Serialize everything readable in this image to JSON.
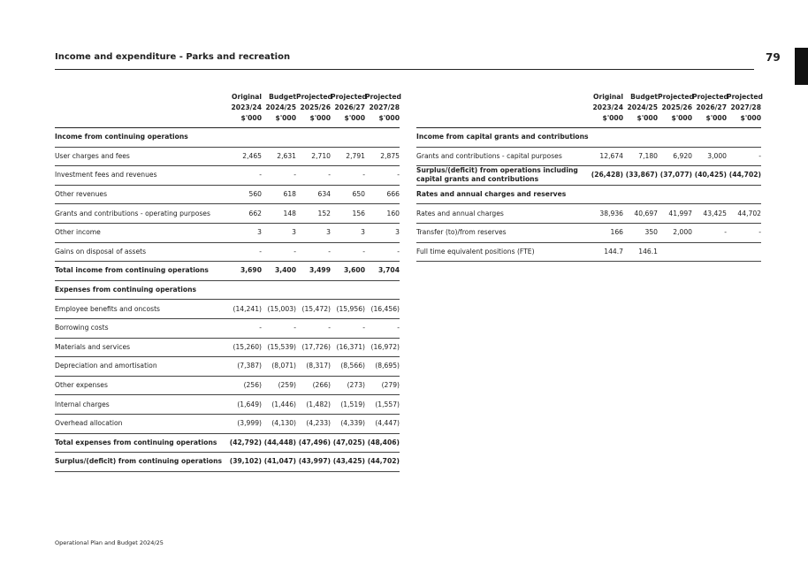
{
  "header": {
    "title": "Income and expenditure - Parks and recreation",
    "page_number": "79"
  },
  "left_table": {
    "columns": [
      [
        "Original",
        "2023/24",
        "$'000"
      ],
      [
        "Budget",
        "2024/25",
        "$'000"
      ],
      [
        "Projected",
        "2025/26",
        "$'000"
      ],
      [
        "Projected",
        "2026/27",
        "$'000"
      ],
      [
        "Projected",
        "2027/28",
        "$'000"
      ]
    ],
    "rows": [
      {
        "cells": [
          "Income from continuing operations"
        ],
        "bold": true
      },
      {
        "cells": [
          "User charges and fees",
          "2,465",
          "2,631",
          "2,710",
          "2,791",
          "2,875"
        ]
      },
      {
        "cells": [
          "Investment fees and revenues",
          "-",
          "-",
          "-",
          "-",
          "-"
        ]
      },
      {
        "cells": [
          "Other revenues",
          "560",
          "618",
          "634",
          "650",
          "666"
        ]
      },
      {
        "cells": [
          "Grants and contributions - operating purposes",
          "662",
          "148",
          "152",
          "156",
          "160"
        ]
      },
      {
        "cells": [
          "Other income",
          "3",
          "3",
          "3",
          "3",
          "3"
        ]
      },
      {
        "cells": [
          "Gains on disposal of assets",
          "-",
          "-",
          "-",
          "-",
          "-"
        ]
      },
      {
        "cells": [
          "Total income from continuing operations",
          "3,690",
          "3,400",
          "3,499",
          "3,600",
          "3,704"
        ],
        "bold": true
      },
      {
        "cells": [
          "Expenses from continuing operations"
        ],
        "bold": true
      },
      {
        "cells": [
          "Employee benefits and oncosts",
          "(14,241)",
          "(15,003)",
          "(15,472)",
          "(15,956)",
          "(16,456)"
        ]
      },
      {
        "cells": [
          "Borrowing costs",
          "-",
          "-",
          "-",
          "-",
          "-"
        ]
      },
      {
        "cells": [
          "Materials and services",
          "(15,260)",
          "(15,539)",
          "(17,726)",
          "(16,371)",
          "(16,972)"
        ]
      },
      {
        "cells": [
          "Depreciation and amortisation",
          "(7,387)",
          "(8,071)",
          "(8,317)",
          "(8,566)",
          "(8,695)"
        ]
      },
      {
        "cells": [
          "Other expenses",
          "(256)",
          "(259)",
          "(266)",
          "(273)",
          "(279)"
        ]
      },
      {
        "cells": [
          "Internal charges",
          "(1,649)",
          "(1,446)",
          "(1,482)",
          "(1,519)",
          "(1,557)"
        ]
      },
      {
        "cells": [
          "Overhead allocation",
          "(3,999)",
          "(4,130)",
          "(4,233)",
          "(4,339)",
          "(4,447)"
        ]
      },
      {
        "cells": [
          "Total expenses from continuing operations",
          "(42,792)",
          "(44,448)",
          "(47,496)",
          "(47,025)",
          "(48,406)"
        ],
        "bold": true
      },
      {
        "cells": [
          "Surplus/(deficit) from continuing operations",
          "(39,102)",
          "(41,047)",
          "(43,997)",
          "(43,425)",
          "(44,702)"
        ],
        "bold": true
      }
    ]
  },
  "right_table": {
    "columns": [
      [
        "Original",
        "2023/24",
        "$'000"
      ],
      [
        "Budget",
        "2024/25",
        "$'000"
      ],
      [
        "Projected",
        "2025/26",
        "$'000"
      ],
      [
        "Projected",
        "2026/27",
        "$'000"
      ],
      [
        "Projected",
        "2027/28",
        "$'000"
      ]
    ],
    "rows": [
      {
        "cells": [
          "Income from capital grants and contributions"
        ],
        "bold": true
      },
      {
        "cells": [
          "Grants and contributions - capital purposes",
          "12,674",
          "7,180",
          "6,920",
          "3,000",
          "-"
        ]
      },
      {
        "cells": [
          "Surplus/(deficit) from operations including capital grants and contributions",
          "(26,428)",
          "(33,867)",
          "(37,077)",
          "(40,425)",
          "(44,702)"
        ],
        "bold": true
      },
      {
        "cells": [
          "Rates and annual charges and reserves"
        ],
        "bold": true
      },
      {
        "cells": [
          "Rates and annual charges",
          "38,936",
          "40,697",
          "41,997",
          "43,425",
          "44,702"
        ]
      },
      {
        "cells": [
          "Transfer (to)/from reserves",
          "166",
          "350",
          "2,000",
          "-",
          "-"
        ]
      },
      {
        "cells": [
          "Full time equivalent positions (FTE)",
          "144.7",
          "146.1"
        ]
      }
    ]
  },
  "footer": {
    "text": "Operational Plan and Budget 2024/25"
  }
}
